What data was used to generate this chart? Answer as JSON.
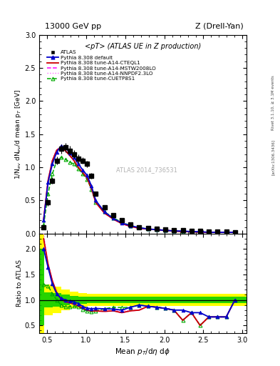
{
  "title_left": "13000 GeV pp",
  "title_right": "Z (Drell-Yan)",
  "plot_title": "<pT> (ATLAS UE in Z production)",
  "xlabel": "Mean $p_{T}$/d$\\eta$ d$\\phi$",
  "ylabel_main": "1/N$_{ev}$ dN$_{ev}$/d mean p$_{T}$ [GeV]",
  "ylabel_ratio": "Ratio to ATLAS",
  "right_label_top": "Rivet 3.1.10, ≥ 3.1M events",
  "right_label_bottom": "[arXiv:1306.3436]",
  "watermark": "ATLAS 2014_736531",
  "xlim": [
    0.4,
    3.05
  ],
  "main_ylim": [
    0.0,
    3.0
  ],
  "ratio_ylim": [
    0.35,
    2.3
  ],
  "atlas_x": [
    0.457,
    0.513,
    0.568,
    0.624,
    0.679,
    0.735,
    0.79,
    0.846,
    0.901,
    0.957,
    1.012,
    1.068,
    1.123,
    1.234,
    1.346,
    1.457,
    1.568,
    1.679,
    1.791,
    1.902,
    2.013,
    2.124,
    2.236,
    2.347,
    2.458,
    2.569,
    2.681,
    2.792,
    2.903
  ],
  "atlas_y": [
    0.1,
    0.47,
    0.8,
    1.1,
    1.28,
    1.3,
    1.25,
    1.2,
    1.13,
    1.1,
    1.05,
    0.87,
    0.6,
    0.4,
    0.28,
    0.2,
    0.14,
    0.1,
    0.08,
    0.07,
    0.06,
    0.05,
    0.05,
    0.04,
    0.04,
    0.03,
    0.03,
    0.03,
    0.02
  ],
  "atlas_yerr": [
    0.02,
    0.05,
    0.05,
    0.06,
    0.07,
    0.07,
    0.07,
    0.06,
    0.06,
    0.05,
    0.05,
    0.04,
    0.03,
    0.02,
    0.02,
    0.015,
    0.01,
    0.008,
    0.006,
    0.005,
    0.005,
    0.004,
    0.004,
    0.003,
    0.003,
    0.003,
    0.003,
    0.003,
    0.002
  ],
  "default_x": [
    0.457,
    0.513,
    0.568,
    0.624,
    0.679,
    0.735,
    0.79,
    0.846,
    0.901,
    0.957,
    1.012,
    1.068,
    1.123,
    1.234,
    1.346,
    1.457,
    1.568,
    1.679,
    1.791,
    1.902,
    2.013,
    2.124,
    2.236,
    2.347,
    2.458,
    2.569,
    2.681,
    2.792,
    2.903
  ],
  "default_y": [
    0.2,
    0.77,
    1.05,
    1.23,
    1.32,
    1.3,
    1.22,
    1.15,
    1.05,
    0.96,
    0.88,
    0.72,
    0.5,
    0.33,
    0.23,
    0.16,
    0.12,
    0.09,
    0.07,
    0.06,
    0.05,
    0.04,
    0.04,
    0.03,
    0.03,
    0.02,
    0.02,
    0.02,
    0.02
  ],
  "cteql1_x": [
    0.457,
    0.513,
    0.568,
    0.624,
    0.679,
    0.735,
    0.79,
    0.846,
    0.901,
    0.957,
    1.012,
    1.068,
    1.123,
    1.234,
    1.346,
    1.457,
    1.568,
    1.679,
    1.791,
    1.902,
    2.013,
    2.124,
    2.236,
    2.347,
    2.458,
    2.569,
    2.681,
    2.792,
    2.903
  ],
  "cteql1_y": [
    0.22,
    0.8,
    1.1,
    1.26,
    1.3,
    1.25,
    1.18,
    1.1,
    1.0,
    0.92,
    0.84,
    0.68,
    0.47,
    0.31,
    0.22,
    0.15,
    0.11,
    0.08,
    0.07,
    0.06,
    0.05,
    0.04,
    0.03,
    0.03,
    0.02,
    0.02,
    0.02,
    0.02,
    0.02
  ],
  "mstw_x": [
    0.457,
    0.513,
    0.568,
    0.624,
    0.679,
    0.735,
    0.79,
    0.846,
    0.901,
    0.957,
    1.012,
    1.068,
    1.123,
    1.234,
    1.346,
    1.457,
    1.568,
    1.679,
    1.791,
    1.902,
    2.013,
    2.124,
    2.236,
    2.347,
    2.458,
    2.569,
    2.681,
    2.792,
    2.903
  ],
  "mstw_y": [
    0.22,
    0.8,
    1.1,
    1.26,
    1.3,
    1.25,
    1.18,
    1.1,
    1.0,
    0.92,
    0.84,
    0.68,
    0.47,
    0.31,
    0.22,
    0.15,
    0.11,
    0.08,
    0.07,
    0.06,
    0.05,
    0.04,
    0.03,
    0.03,
    0.02,
    0.02,
    0.02,
    0.02,
    0.02
  ],
  "nnpdf_x": [
    0.457,
    0.513,
    0.568,
    0.624,
    0.679,
    0.735,
    0.79,
    0.846,
    0.901,
    0.957,
    1.012,
    1.068,
    1.123,
    1.234,
    1.346,
    1.457,
    1.568,
    1.679,
    1.791,
    1.902,
    2.013,
    2.124,
    2.236,
    2.347,
    2.458,
    2.569,
    2.681,
    2.792,
    2.903
  ],
  "nnpdf_y": [
    0.23,
    0.81,
    1.11,
    1.27,
    1.31,
    1.26,
    1.19,
    1.11,
    1.01,
    0.93,
    0.85,
    0.69,
    0.48,
    0.32,
    0.22,
    0.16,
    0.11,
    0.08,
    0.07,
    0.06,
    0.05,
    0.04,
    0.03,
    0.03,
    0.02,
    0.02,
    0.02,
    0.02,
    0.02
  ],
  "cuetp_x": [
    0.457,
    0.513,
    0.568,
    0.624,
    0.679,
    0.735,
    0.79,
    0.846,
    0.901,
    0.957,
    1.012,
    1.068,
    1.123,
    1.234,
    1.346,
    1.457,
    1.568,
    1.679,
    1.791,
    1.902,
    2.013,
    2.124,
    2.236,
    2.347,
    2.458,
    2.569,
    2.681,
    2.792,
    2.903
  ],
  "cuetp_y": [
    0.13,
    0.6,
    0.9,
    1.1,
    1.15,
    1.12,
    1.08,
    1.05,
    0.98,
    0.9,
    0.82,
    0.67,
    0.47,
    0.33,
    0.24,
    0.17,
    0.12,
    0.09,
    0.07,
    0.06,
    0.05,
    0.04,
    0.03,
    0.03,
    0.02,
    0.02,
    0.02,
    0.02,
    0.02
  ],
  "band_x_edges": [
    0.4,
    0.46,
    0.57,
    0.68,
    0.79,
    0.9,
    1.01,
    1.18,
    1.4,
    1.62,
    1.84,
    2.07,
    2.29,
    2.51,
    2.73,
    2.95,
    3.05
  ],
  "band_green_lo": [
    0.5,
    0.85,
    0.87,
    0.9,
    0.92,
    0.93,
    0.94,
    0.94,
    0.94,
    0.94,
    0.94,
    0.94,
    0.94,
    0.94,
    0.94,
    0.94,
    0.94
  ],
  "band_green_hi": [
    2.0,
    1.15,
    1.13,
    1.1,
    1.08,
    1.07,
    1.06,
    1.06,
    1.06,
    1.06,
    1.06,
    1.06,
    1.06,
    1.06,
    1.06,
    1.06,
    1.06
  ],
  "band_yellow_lo": [
    0.35,
    0.7,
    0.74,
    0.8,
    0.84,
    0.86,
    0.88,
    0.88,
    0.88,
    0.88,
    0.88,
    0.88,
    0.88,
    0.88,
    0.88,
    0.88,
    0.88
  ],
  "band_yellow_hi": [
    2.3,
    1.3,
    1.26,
    1.2,
    1.16,
    1.14,
    1.12,
    1.12,
    1.12,
    1.12,
    1.12,
    1.12,
    1.12,
    1.12,
    1.12,
    1.12,
    1.12
  ],
  "color_atlas": "#000000",
  "color_default": "#0000cc",
  "color_cteql1": "#cc0000",
  "color_mstw": "#ff00ff",
  "color_nnpdf": "#ff66ff",
  "color_cuetp": "#00aa00",
  "color_band_green": "#00cc00",
  "color_band_yellow": "#ffff00",
  "legend_entries": [
    "ATLAS",
    "Pythia 8.308 default",
    "Pythia 8.308 tune-A14-CTEQL1",
    "Pythia 8.308 tune-A14-MSTW2008LO",
    "Pythia 8.308 tune-A14-NNPDF2.3LO",
    "Pythia 8.308 tune-CUETP8S1"
  ]
}
